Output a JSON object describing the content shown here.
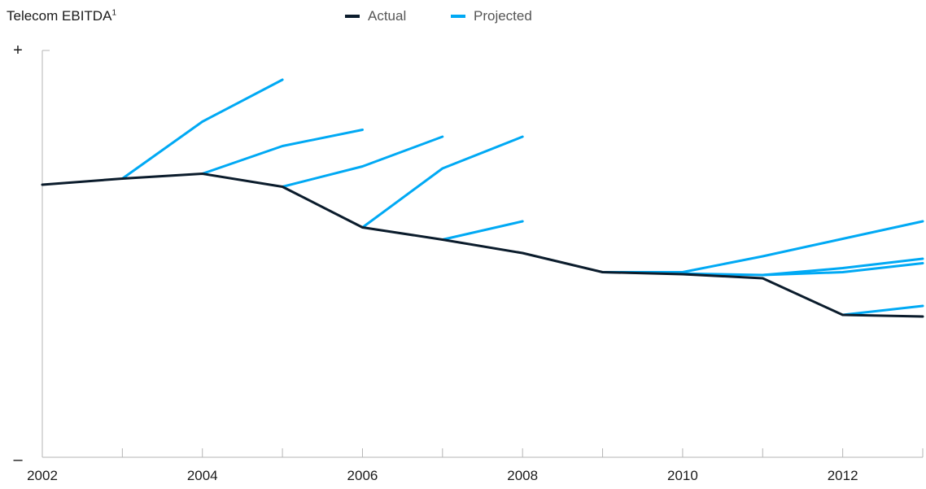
{
  "chart_data": {
    "type": "line",
    "title": "Telecom EBITDA",
    "title_footnote": "1",
    "y_top_label": "+",
    "y_bottom_label": "–",
    "y_axis_numbers_shown": false,
    "xlim": [
      2002,
      2013
    ],
    "ylim": [
      0,
      100
    ],
    "x_ticks": [
      2002,
      2003,
      2004,
      2005,
      2006,
      2007,
      2008,
      2009,
      2010,
      2011,
      2012,
      2013
    ],
    "x_tick_labels": [
      "2002",
      "2004",
      "2006",
      "2008",
      "2010",
      "2012"
    ],
    "legend_position": "top-center",
    "series": [
      {
        "name": "Actual",
        "color": "#0b1c2c",
        "points": [
          [
            2002,
            67
          ],
          [
            2003,
            68.5
          ],
          [
            2004,
            69.7
          ],
          [
            2005,
            66.5
          ],
          [
            2006,
            56.5
          ],
          [
            2007,
            53.5
          ],
          [
            2008,
            50.2
          ],
          [
            2009,
            45.5
          ],
          [
            2010,
            45
          ],
          [
            2011,
            44
          ],
          [
            2012,
            35
          ],
          [
            2013,
            34.6
          ]
        ]
      },
      {
        "name": "Projected",
        "color": "#00a9f4",
        "segments": [
          [
            [
              2003,
              68.5
            ],
            [
              2004,
              82.5
            ],
            [
              2005,
              92.8
            ]
          ],
          [
            [
              2004,
              69.7
            ],
            [
              2005,
              76.5
            ],
            [
              2006,
              80.5
            ]
          ],
          [
            [
              2005,
              66.5
            ],
            [
              2006,
              71.5
            ],
            [
              2007,
              78.8
            ]
          ],
          [
            [
              2006,
              56.5
            ],
            [
              2007,
              71
            ],
            [
              2008,
              78.8
            ]
          ],
          [
            [
              2007,
              53.5
            ],
            [
              2008,
              58
            ]
          ],
          [
            [
              2009,
              45.5
            ],
            [
              2010,
              45.5
            ],
            [
              2011,
              49.4
            ],
            [
              2012,
              53.7
            ],
            [
              2013,
              58
            ]
          ],
          [
            [
              2009,
              45.5
            ],
            [
              2011,
              44.8
            ],
            [
              2012,
              46.5
            ],
            [
              2013,
              48.8
            ]
          ],
          [
            [
              2011,
              44.8
            ],
            [
              2012,
              45.5
            ],
            [
              2013,
              47.7
            ]
          ],
          [
            [
              2012,
              35
            ],
            [
              2013,
              37.2
            ]
          ]
        ]
      }
    ]
  }
}
